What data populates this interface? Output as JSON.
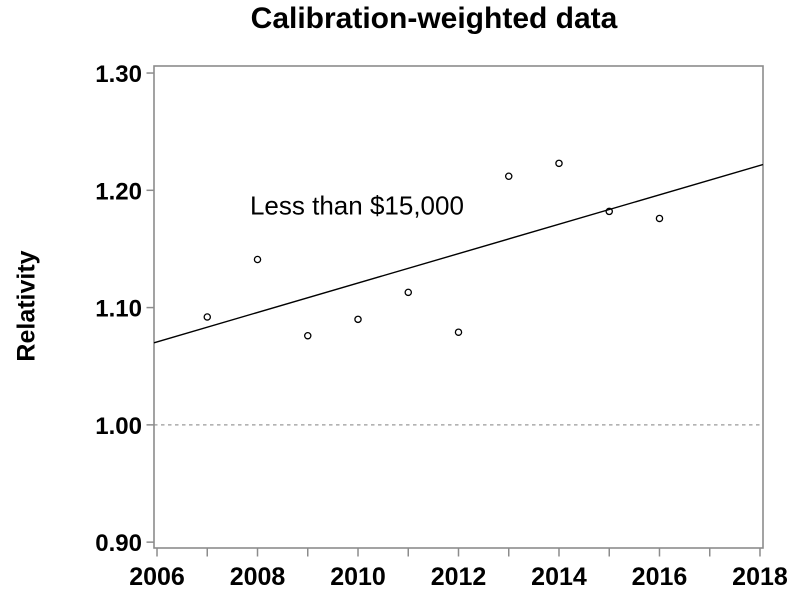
{
  "chart_data": {
    "type": "scatter",
    "title": "Calibration-weighted data",
    "xlabel": "",
    "ylabel": "Relativity",
    "annotation": {
      "text": "Less than $15,000",
      "x": 2007.85,
      "y": 1.187
    },
    "xlim": [
      2005.94,
      2018.06
    ],
    "ylim": [
      0.895,
      1.306
    ],
    "x_ticks": [
      {
        "x": 2006,
        "label": "2006"
      },
      {
        "x": 2007,
        "label": ""
      },
      {
        "x": 2008,
        "label": "2008"
      },
      {
        "x": 2009,
        "label": ""
      },
      {
        "x": 2010,
        "label": "2010"
      },
      {
        "x": 2011,
        "label": ""
      },
      {
        "x": 2012,
        "label": "2012"
      },
      {
        "x": 2013,
        "label": ""
      },
      {
        "x": 2014,
        "label": "2014"
      },
      {
        "x": 2015,
        "label": ""
      },
      {
        "x": 2016,
        "label": "2016"
      },
      {
        "x": 2017,
        "label": ""
      },
      {
        "x": 2018,
        "label": "2018"
      }
    ],
    "y_ticks": [
      {
        "y": 0.9,
        "label": "0.90"
      },
      {
        "y": 1.0,
        "label": "1.00"
      },
      {
        "y": 1.1,
        "label": "1.10"
      },
      {
        "y": 1.2,
        "label": "1.20"
      },
      {
        "y": 1.3,
        "label": "1.30"
      }
    ],
    "reference_line": {
      "y": 1.0,
      "style": "dashed"
    },
    "series": [
      {
        "name": "Observed relativity",
        "type": "scatter",
        "marker": "open-circle",
        "points": [
          {
            "x": 2007,
            "y": 1.092
          },
          {
            "x": 2008,
            "y": 1.141
          },
          {
            "x": 2009,
            "y": 1.076
          },
          {
            "x": 2010,
            "y": 1.09
          },
          {
            "x": 2011,
            "y": 1.113
          },
          {
            "x": 2012,
            "y": 1.079
          },
          {
            "x": 2013,
            "y": 1.212
          },
          {
            "x": 2014,
            "y": 1.223
          },
          {
            "x": 2015,
            "y": 1.182
          },
          {
            "x": 2016,
            "y": 1.176
          }
        ]
      },
      {
        "name": "Trend line",
        "type": "line",
        "points": [
          {
            "x": 2005.94,
            "y": 1.07
          },
          {
            "x": 2018.06,
            "y": 1.222
          }
        ]
      }
    ],
    "legend": "none",
    "grid": false,
    "colors": {
      "background": "#ffffff",
      "frame": "#8c8c8c",
      "tick": "#8c8c8c",
      "reference_line": "#9a9a9a",
      "marker_stroke": "#000000",
      "marker_fill": "#ffffff",
      "trend_line": "#000000",
      "text": "#000000"
    }
  }
}
